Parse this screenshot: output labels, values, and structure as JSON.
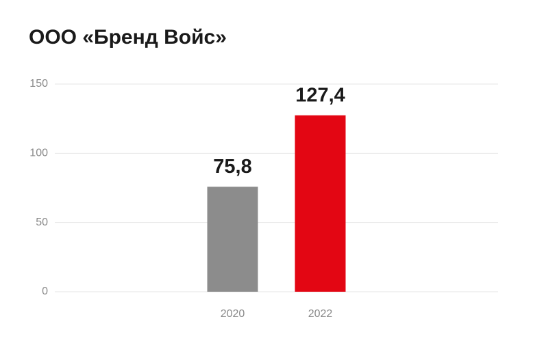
{
  "chart_data": {
    "type": "bar",
    "title": "ООО «Бренд Войс»",
    "categories": [
      "2020",
      "2022"
    ],
    "values": [
      75.8,
      127.4
    ],
    "value_labels": [
      "75,8",
      "127,4"
    ],
    "colors": [
      "#8c8c8c",
      "#e30613"
    ],
    "ylim": [
      0,
      150
    ],
    "yticks": [
      0,
      50,
      100,
      150
    ],
    "grid": true
  }
}
